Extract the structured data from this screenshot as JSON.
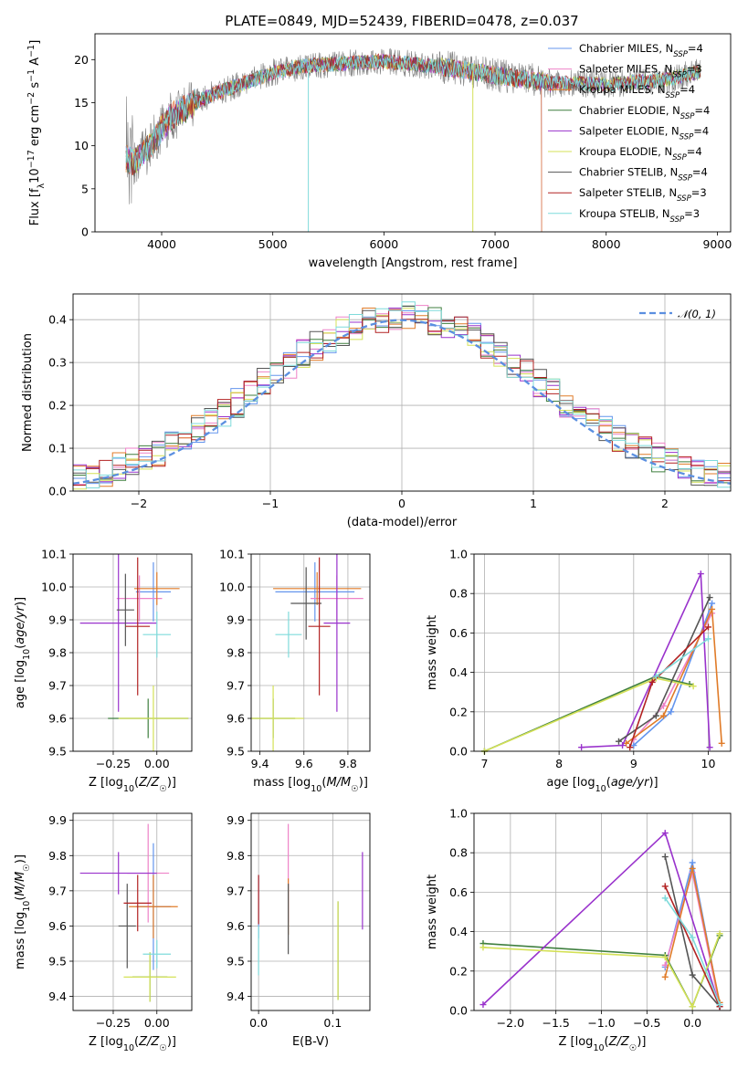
{
  "page": {
    "title": "PLATE=0849, MJD=52439, FIBERID=0478, z=0.037"
  },
  "colors": {
    "Chabrier MILES": "#6495ed",
    "Salpeter MILES": "#ee82c8",
    "Kroupa MILES": "#e07b28",
    "Chabrier ELODIE": "#3f7f3f",
    "Salpeter ELODIE": "#9932cc",
    "Kroupa ELODIE": "#d4e157",
    "Chabrier STELIB": "#555555",
    "Salpeter STELIB": "#b22222",
    "Kroupa STELIB": "#7fdbdb",
    "observed": "#808080"
  },
  "legend": {
    "models": [
      {
        "key": "Chabrier MILES",
        "label": "Chabrier MILES, N",
        "sub": "SSP",
        "tail": "=4"
      },
      {
        "key": "Salpeter MILES",
        "label": "Salpeter MILES, N",
        "sub": "SSP",
        "tail": "=3"
      },
      {
        "key": "Kroupa MILES",
        "label": "Kroupa MILES, N",
        "sub": "SSP",
        "tail": "=4"
      },
      {
        "key": "Chabrier ELODIE",
        "label": "Chabrier ELODIE, N",
        "sub": "SSP",
        "tail": "=4"
      },
      {
        "key": "Salpeter ELODIE",
        "label": "Salpeter ELODIE, N",
        "sub": "SSP",
        "tail": "=4"
      },
      {
        "key": "Kroupa ELODIE",
        "label": "Kroupa ELODIE, N",
        "sub": "SSP",
        "tail": "=4"
      },
      {
        "key": "Chabrier STELIB",
        "label": "Chabrier STELIB, N",
        "sub": "SSP",
        "tail": "=4"
      },
      {
        "key": "Salpeter STELIB",
        "label": "Salpeter STELIB, N",
        "sub": "SSP",
        "tail": "=3"
      },
      {
        "key": "Kroupa STELIB",
        "label": "Kroupa STELIB, N",
        "sub": "SSP",
        "tail": "=3"
      }
    ],
    "normal": "𝒩(0, 1)"
  },
  "chart_data": [
    {
      "id": "spectrum",
      "type": "line",
      "title": "PLATE=0849, MJD=52439, FIBERID=0478, z=0.037",
      "xlabel": "wavelength [Angstrom, rest frame]",
      "ylabel": "Flux [f_λ 10^-17 erg cm^-2 s^-1 A^-1]",
      "xlim": [
        3400,
        9120
      ],
      "ylim": [
        0,
        23
      ],
      "xticks": [
        "4000",
        "5000",
        "6000",
        "7000",
        "8000",
        "9000"
      ],
      "yticks": [
        "0",
        "5",
        "10",
        "15",
        "20"
      ],
      "grid": false,
      "legend_position": "top-right",
      "continuum": [
        [
          3680,
          8.5
        ],
        [
          3750,
          8
        ],
        [
          3900,
          10
        ],
        [
          4000,
          12
        ],
        [
          4100,
          13.5
        ],
        [
          4300,
          15
        ],
        [
          4500,
          16.2
        ],
        [
          4800,
          17.5
        ],
        [
          5000,
          18.5
        ],
        [
          5300,
          19.3
        ],
        [
          5700,
          19.6
        ],
        [
          6000,
          19.8
        ],
        [
          6500,
          19.2
        ],
        [
          7000,
          18.2
        ],
        [
          7500,
          17.3
        ],
        [
          8000,
          17.1
        ],
        [
          8500,
          17.6
        ],
        [
          8850,
          18.6
        ]
      ]
    },
    {
      "id": "residuals",
      "type": "histogram",
      "xlabel": "(data-model)/error",
      "ylabel": "Normed distribution",
      "xlim": [
        -2.5,
        2.5
      ],
      "ylim": [
        0,
        0.46
      ],
      "xticks": [
        "−2",
        "−1",
        "0",
        "1",
        "2"
      ],
      "yticks": [
        "0.0",
        "0.1",
        "0.2",
        "0.3",
        "0.4"
      ],
      "grid": true,
      "bin_width": 0.1,
      "legend_position": "top-right",
      "reference_curve": "normal(0,1)"
    },
    {
      "id": "age-vs-Z",
      "type": "errorbar",
      "xlabel": "Z [log10(Z/Z☉)]",
      "ylabel": "age [log10(age/yr)]",
      "xlim": [
        -0.48,
        0.2
      ],
      "ylim": [
        9.5,
        10.1
      ],
      "xticks": [
        "−0.25",
        "0.00"
      ],
      "yticks": [
        "9.5",
        "9.6",
        "9.7",
        "9.8",
        "9.9",
        "10.0",
        "10.1"
      ],
      "grid": true,
      "points": [
        {
          "m": "Chabrier MILES",
          "x": -0.02,
          "xerr": 0.1,
          "y": 9.985,
          "yerr": 0.09
        },
        {
          "m": "Salpeter MILES",
          "x": -0.1,
          "xerr": 0.13,
          "y": 9.965,
          "yerr": 0.07
        },
        {
          "m": "Kroupa MILES",
          "x": 0.0,
          "xerr": 0.13,
          "y": 9.995,
          "yerr": 0.05
        },
        {
          "m": "Chabrier ELODIE",
          "x": -0.05,
          "xerr": 0.23,
          "y": 9.6,
          "yerr": 0.06
        },
        {
          "m": "Salpeter ELODIE",
          "x": -0.22,
          "xerr": 0.22,
          "y": 9.89,
          "yerr": 0.27
        },
        {
          "m": "Kroupa ELODIE",
          "x": -0.02,
          "xerr": 0.2,
          "y": 9.6,
          "yerr": 0.1
        },
        {
          "m": "Chabrier STELIB",
          "x": -0.18,
          "xerr": 0.05,
          "y": 9.93,
          "yerr": 0.11
        },
        {
          "m": "Salpeter STELIB",
          "x": -0.11,
          "xerr": 0.07,
          "y": 9.88,
          "yerr": 0.21
        },
        {
          "m": "Kroupa STELIB",
          "x": 0.0,
          "xerr": 0.08,
          "y": 9.855,
          "yerr": 0.07
        }
      ]
    },
    {
      "id": "age-vs-mass",
      "type": "errorbar",
      "xlabel": "mass [log10(M/M☉)]",
      "xlim": [
        9.36,
        9.9
      ],
      "ylim": [
        9.5,
        10.1
      ],
      "xticks": [
        "9.4",
        "9.6",
        "9.8"
      ],
      "yticks": [
        "9.5",
        "9.6",
        "9.7",
        "9.8",
        "9.9",
        "10.0",
        "10.1"
      ],
      "grid": true,
      "points": [
        {
          "m": "Chabrier MILES",
          "x": 9.65,
          "xerr": 0.18,
          "y": 9.985,
          "yerr": 0.09
        },
        {
          "m": "Salpeter MILES",
          "x": 9.75,
          "xerr": 0.12,
          "y": 9.965,
          "yerr": 0.07
        },
        {
          "m": "Kroupa MILES",
          "x": 9.66,
          "xerr": 0.2,
          "y": 9.995,
          "yerr": 0.05
        },
        {
          "m": "Chabrier ELODIE",
          "x": 9.46,
          "xerr": 0.1,
          "y": 9.6,
          "yerr": 0.06
        },
        {
          "m": "Salpeter ELODIE",
          "x": 9.75,
          "xerr": 0.06,
          "y": 9.89,
          "yerr": 0.27
        },
        {
          "m": "Kroupa ELODIE",
          "x": 9.46,
          "xerr": 0.14,
          "y": 9.6,
          "yerr": 0.1
        },
        {
          "m": "Chabrier STELIB",
          "x": 9.61,
          "xerr": 0.07,
          "y": 9.95,
          "yerr": 0.11
        },
        {
          "m": "Salpeter STELIB",
          "x": 9.67,
          "xerr": 0.05,
          "y": 9.88,
          "yerr": 0.21
        },
        {
          "m": "Kroupa STELIB",
          "x": 9.53,
          "xerr": 0.06,
          "y": 9.855,
          "yerr": 0.07
        }
      ]
    },
    {
      "id": "weight-vs-age",
      "type": "line",
      "xlabel": "age [log10(age/yr)]",
      "ylabel": "mass weight",
      "xlim": [
        6.86,
        10.3
      ],
      "ylim": [
        0,
        1
      ],
      "xticks": [
        "7",
        "8",
        "9",
        "10"
      ],
      "yticks": [
        "0.0",
        "0.2",
        "0.4",
        "0.6",
        "0.8",
        "1.0"
      ],
      "grid": true,
      "series": [
        {
          "m": "Chabrier MILES",
          "points": [
            [
              9.0,
              0.03
            ],
            [
              9.5,
              0.2
            ],
            [
              10.05,
              0.75
            ]
          ]
        },
        {
          "m": "Salpeter MILES",
          "points": [
            [
              9.0,
              0.06
            ],
            [
              9.4,
              0.23
            ],
            [
              10.05,
              0.7
            ]
          ]
        },
        {
          "m": "Kroupa MILES",
          "points": [
            [
              8.9,
              0.04
            ],
            [
              9.4,
              0.18
            ],
            [
              10.05,
              0.72
            ],
            [
              10.18,
              0.04
            ]
          ]
        },
        {
          "m": "Chabrier ELODIE",
          "points": [
            [
              7.0,
              0.0
            ],
            [
              9.3,
              0.38
            ],
            [
              9.75,
              0.34
            ]
          ]
        },
        {
          "m": "Salpeter ELODIE",
          "points": [
            [
              8.3,
              0.02
            ],
            [
              8.85,
              0.03
            ],
            [
              9.9,
              0.9
            ],
            [
              10.02,
              0.02
            ]
          ]
        },
        {
          "m": "Kroupa ELODIE",
          "points": [
            [
              7.0,
              0.0
            ],
            [
              9.3,
              0.37
            ],
            [
              9.8,
              0.33
            ]
          ]
        },
        {
          "m": "Chabrier STELIB",
          "points": [
            [
              8.8,
              0.05
            ],
            [
              9.3,
              0.18
            ],
            [
              10.02,
              0.78
            ]
          ]
        },
        {
          "m": "Salpeter STELIB",
          "points": [
            [
              8.95,
              0.02
            ],
            [
              9.25,
              0.35
            ],
            [
              10.0,
              0.63
            ]
          ]
        },
        {
          "m": "Kroupa STELIB",
          "points": [
            [
              9.3,
              0.38
            ],
            [
              10.0,
              0.57
            ]
          ]
        }
      ]
    },
    {
      "id": "mass-vs-Z",
      "type": "errorbar",
      "xlabel": "Z [log10(Z/Z☉)]",
      "ylabel": "mass [log10(M/M☉)]",
      "xlim": [
        -0.48,
        0.2
      ],
      "ylim": [
        9.36,
        9.92
      ],
      "xticks": [
        "−0.25",
        "0.00"
      ],
      "yticks": [
        "9.4",
        "9.5",
        "9.6",
        "9.7",
        "9.8",
        "9.9"
      ],
      "grid": true,
      "points": [
        {
          "m": "Chabrier MILES",
          "x": -0.02,
          "xerr": 0.1,
          "y": 9.655,
          "yerr": 0.18
        },
        {
          "m": "Salpeter MILES",
          "x": -0.05,
          "xerr": 0.12,
          "y": 9.75,
          "yerr": 0.14
        },
        {
          "m": "Kroupa MILES",
          "x": -0.02,
          "xerr": 0.14,
          "y": 9.655,
          "yerr": 0.09
        },
        {
          "m": "Chabrier ELODIE",
          "x": -0.04,
          "xerr": 0.1,
          "y": 9.455,
          "yerr": 0.07
        },
        {
          "m": "Salpeter ELODIE",
          "x": -0.22,
          "xerr": 0.22,
          "y": 9.75,
          "yerr": 0.06
        },
        {
          "m": "Kroupa ELODIE",
          "x": -0.04,
          "xerr": 0.15,
          "y": 9.455,
          "yerr": 0.07
        },
        {
          "m": "Chabrier STELIB",
          "x": -0.17,
          "xerr": 0.05,
          "y": 9.6,
          "yerr": 0.12
        },
        {
          "m": "Salpeter STELIB",
          "x": -0.11,
          "xerr": 0.08,
          "y": 9.665,
          "yerr": 0.08
        },
        {
          "m": "Kroupa STELIB",
          "x": 0.0,
          "xerr": 0.08,
          "y": 9.52,
          "yerr": 0.04
        }
      ]
    },
    {
      "id": "mass-vs-EBV",
      "type": "errorbar",
      "xlabel": "E(B-V)",
      "xlim": [
        -0.01,
        0.15
      ],
      "ylim": [
        9.36,
        9.92
      ],
      "xticks": [
        "0.0",
        "0.1"
      ],
      "yticks": [
        "9.4",
        "9.5",
        "9.6",
        "9.7",
        "9.8",
        "9.9"
      ],
      "grid": true,
      "points": [
        {
          "m": "Chabrier MILES",
          "x": 0.0,
          "y": 9.655,
          "yerr": 0.09
        },
        {
          "m": "Salpeter MILES",
          "x": 0.04,
          "y": 9.75,
          "yerr": 0.14
        },
        {
          "m": "Kroupa MILES",
          "x": 0.04,
          "y": 9.655,
          "yerr": 0.08
        },
        {
          "m": "Chabrier ELODIE",
          "x": 0.107,
          "y": 9.53,
          "yerr": 0.14
        },
        {
          "m": "Salpeter ELODIE",
          "x": 0.14,
          "y": 9.7,
          "yerr": 0.11
        },
        {
          "m": "Kroupa ELODIE",
          "x": 0.107,
          "y": 9.53,
          "yerr": 0.14
        },
        {
          "m": "Chabrier STELIB",
          "x": 0.04,
          "y": 9.62,
          "yerr": 0.1
        },
        {
          "m": "Salpeter STELIB",
          "x": 0.0,
          "y": 9.675,
          "yerr": 0.07
        },
        {
          "m": "Kroupa STELIB",
          "x": 0.0,
          "y": 9.53,
          "yerr": 0.07
        }
      ]
    },
    {
      "id": "weight-vs-Z",
      "type": "line",
      "xlabel": "Z [log10(Z/Z☉)]",
      "ylabel": "mass weight",
      "xlim": [
        -2.4,
        0.42
      ],
      "ylim": [
        0,
        1
      ],
      "xticks": [
        "−2.0",
        "−1.5",
        "−1.0",
        "−0.5",
        "0.0"
      ],
      "yticks": [
        "0.0",
        "0.2",
        "0.4",
        "0.6",
        "0.8",
        "1.0"
      ],
      "grid": true,
      "series": [
        {
          "m": "Chabrier MILES",
          "points": [
            [
              -0.3,
              0.22
            ],
            [
              0.0,
              0.75
            ],
            [
              0.3,
              0.03
            ]
          ]
        },
        {
          "m": "Salpeter MILES",
          "points": [
            [
              -0.3,
              0.23
            ],
            [
              0.0,
              0.7
            ],
            [
              0.3,
              0.02
            ]
          ]
        },
        {
          "m": "Kroupa MILES",
          "points": [
            [
              -0.3,
              0.17
            ],
            [
              0.0,
              0.72
            ],
            [
              0.3,
              0.04
            ]
          ]
        },
        {
          "m": "Chabrier ELODIE",
          "points": [
            [
              -2.3,
              0.34
            ],
            [
              -0.3,
              0.28
            ],
            [
              0.0,
              0.02
            ],
            [
              0.3,
              0.38
            ]
          ]
        },
        {
          "m": "Salpeter ELODIE",
          "points": [
            [
              -2.3,
              0.03
            ],
            [
              -0.3,
              0.9
            ],
            [
              0.3,
              0.02
            ]
          ]
        },
        {
          "m": "Kroupa ELODIE",
          "points": [
            [
              -2.3,
              0.32
            ],
            [
              -0.3,
              0.27
            ],
            [
              0.0,
              0.02
            ],
            [
              0.3,
              0.39
            ]
          ]
        },
        {
          "m": "Chabrier STELIB",
          "points": [
            [
              -0.3,
              0.78
            ],
            [
              0.0,
              0.18
            ],
            [
              0.3,
              0.02
            ]
          ]
        },
        {
          "m": "Salpeter STELIB",
          "points": [
            [
              -0.3,
              0.63
            ],
            [
              0.3,
              0.02
            ]
          ]
        },
        {
          "m": "Kroupa STELIB",
          "points": [
            [
              -0.3,
              0.57
            ],
            [
              0.0,
              0.37
            ],
            [
              0.3,
              0.03
            ]
          ]
        }
      ]
    }
  ]
}
